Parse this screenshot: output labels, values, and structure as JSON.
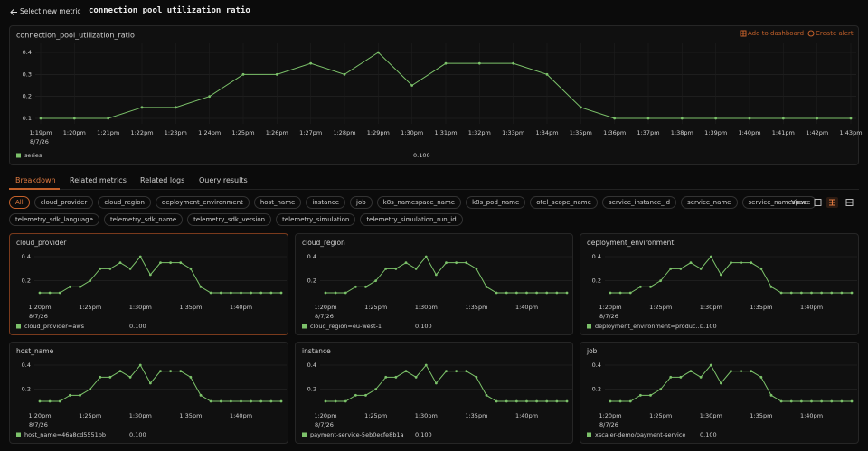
{
  "header": {
    "back": "Select new metric",
    "metric": "connection_pool_utilization_ratio"
  },
  "actions": [
    "Add to dashboard",
    "Create alert"
  ],
  "tabs": [
    "Breakdown",
    "Related metrics",
    "Related logs",
    "Query results"
  ],
  "filters": {
    "row1": [
      "All",
      "cloud_provider",
      "cloud_region",
      "deployment_environment",
      "host_name",
      "instance",
      "job",
      "k8s_namespace_name",
      "k8s_pod_name",
      "otel_scope_name",
      "service_instance_id",
      "service_name",
      "service_namespace"
    ],
    "row2": [
      "telemetry_sdk_language",
      "telemetry_sdk_name",
      "telemetry_sdk_version",
      "telemetry_simulation",
      "telemetry_simulation_run_id"
    ]
  },
  "view": "View",
  "chart_data": [
    {
      "type": "line",
      "title": "connection_pool_utilization_ratio",
      "date": "8/7/26",
      "categories": [
        "1:19pm",
        "1:20pm",
        "1:21pm",
        "1:22pm",
        "1:23pm",
        "1:24pm",
        "1:25pm",
        "1:26pm",
        "1:27pm",
        "1:28pm",
        "1:29pm",
        "1:30pm",
        "1:31pm",
        "1:32pm",
        "1:33pm",
        "1:34pm",
        "1:35pm",
        "1:36pm",
        "1:37pm",
        "1:38pm",
        "1:39pm",
        "1:40pm",
        "1:41pm",
        "1:42pm",
        "1:43pm"
      ],
      "series": [
        {
          "name": "series",
          "color": "#7cc26a",
          "values": [
            0.1,
            0.1,
            0.1,
            0.15,
            0.15,
            0.2,
            0.3,
            0.3,
            0.35,
            0.3,
            0.4,
            0.25,
            0.35,
            0.35,
            0.35,
            0.3,
            0.15,
            0.1,
            0.1,
            0.1,
            0.1,
            0.1,
            0.1,
            0.1,
            0.1
          ]
        }
      ],
      "legend_value": "0.100",
      "ylim": [
        0.1,
        0.4
      ],
      "yticks": [
        0.1,
        0.2,
        0.3,
        0.4
      ],
      "grid": true
    },
    {
      "type": "line",
      "title": "cloud_provider",
      "date": "8/7/26",
      "categories": [
        "1:20pm",
        null,
        null,
        null,
        null,
        "1:25pm",
        null,
        null,
        null,
        null,
        "1:30pm",
        null,
        null,
        null,
        null,
        "1:35pm",
        null,
        null,
        null,
        null,
        "1:40pm",
        null,
        null,
        null,
        null
      ],
      "series": [
        {
          "name": "cloud_provider=aws",
          "color": "#7cc26a",
          "values": [
            0.1,
            0.1,
            0.1,
            0.15,
            0.15,
            0.2,
            0.3,
            0.3,
            0.35,
            0.3,
            0.4,
            0.25,
            0.35,
            0.35,
            0.35,
            0.3,
            0.15,
            0.1,
            0.1,
            0.1,
            0.1,
            0.1,
            0.1,
            0.1,
            0.1
          ]
        }
      ],
      "legend_value": "0.100",
      "ylim": [
        0.1,
        0.4
      ],
      "yticks": [
        0.2,
        0.4
      ],
      "grid": true,
      "selected": true
    },
    {
      "type": "line",
      "title": "cloud_region",
      "date": "8/7/26",
      "categories": [
        "1:20pm",
        null,
        null,
        null,
        null,
        "1:25pm",
        null,
        null,
        null,
        null,
        "1:30pm",
        null,
        null,
        null,
        null,
        "1:35pm",
        null,
        null,
        null,
        null,
        "1:40pm",
        null,
        null,
        null,
        null
      ],
      "series": [
        {
          "name": "cloud_region=eu-west-1",
          "color": "#7cc26a",
          "values": [
            0.1,
            0.1,
            0.1,
            0.15,
            0.15,
            0.2,
            0.3,
            0.3,
            0.35,
            0.3,
            0.4,
            0.25,
            0.35,
            0.35,
            0.35,
            0.3,
            0.15,
            0.1,
            0.1,
            0.1,
            0.1,
            0.1,
            0.1,
            0.1,
            0.1
          ]
        }
      ],
      "legend_value": "0.100",
      "ylim": [
        0.1,
        0.4
      ],
      "yticks": [
        0.2,
        0.4
      ],
      "grid": true
    },
    {
      "type": "line",
      "title": "deployment_environment",
      "date": "8/7/26",
      "categories": [
        "1:20pm",
        null,
        null,
        null,
        null,
        "1:25pm",
        null,
        null,
        null,
        null,
        "1:30pm",
        null,
        null,
        null,
        null,
        "1:35pm",
        null,
        null,
        null,
        null,
        "1:40pm",
        null,
        null,
        null,
        null
      ],
      "series": [
        {
          "name": "deployment_environment=produc…",
          "color": "#7cc26a",
          "values": [
            0.1,
            0.1,
            0.1,
            0.15,
            0.15,
            0.2,
            0.3,
            0.3,
            0.35,
            0.3,
            0.4,
            0.25,
            0.35,
            0.35,
            0.35,
            0.3,
            0.15,
            0.1,
            0.1,
            0.1,
            0.1,
            0.1,
            0.1,
            0.1,
            0.1
          ]
        }
      ],
      "legend_value": "0.100",
      "ylim": [
        0.1,
        0.4
      ],
      "yticks": [
        0.2,
        0.4
      ],
      "grid": true
    },
    {
      "type": "line",
      "title": "host_name",
      "date": "8/7/26",
      "categories": [
        "1:20pm",
        null,
        null,
        null,
        null,
        "1:25pm",
        null,
        null,
        null,
        null,
        "1:30pm",
        null,
        null,
        null,
        null,
        "1:35pm",
        null,
        null,
        null,
        null,
        "1:40pm",
        null,
        null,
        null,
        null
      ],
      "series": [
        {
          "name": "host_name=46a8cd5551bb",
          "color": "#7cc26a",
          "values": [
            0.1,
            0.1,
            0.1,
            0.15,
            0.15,
            0.2,
            0.3,
            0.3,
            0.35,
            0.3,
            0.4,
            0.25,
            0.35,
            0.35,
            0.35,
            0.3,
            0.15,
            0.1,
            0.1,
            0.1,
            0.1,
            0.1,
            0.1,
            0.1,
            0.1
          ]
        }
      ],
      "legend_value": "0.100",
      "ylim": [
        0.1,
        0.4
      ],
      "yticks": [
        0.2,
        0.4
      ],
      "grid": true
    },
    {
      "type": "line",
      "title": "instance",
      "date": "8/7/26",
      "categories": [
        "1:20pm",
        null,
        null,
        null,
        null,
        "1:25pm",
        null,
        null,
        null,
        null,
        "1:30pm",
        null,
        null,
        null,
        null,
        "1:35pm",
        null,
        null,
        null,
        null,
        "1:40pm",
        null,
        null,
        null,
        null
      ],
      "series": [
        {
          "name": "payment-service-5eb0ecfe8b1a",
          "color": "#7cc26a",
          "values": [
            0.1,
            0.1,
            0.1,
            0.15,
            0.15,
            0.2,
            0.3,
            0.3,
            0.35,
            0.3,
            0.4,
            0.25,
            0.35,
            0.35,
            0.35,
            0.3,
            0.15,
            0.1,
            0.1,
            0.1,
            0.1,
            0.1,
            0.1,
            0.1,
            0.1
          ]
        }
      ],
      "legend_value": "0.100",
      "ylim": [
        0.1,
        0.4
      ],
      "yticks": [
        0.2,
        0.4
      ],
      "grid": true
    },
    {
      "type": "line",
      "title": "job",
      "date": "8/7/26",
      "categories": [
        "1:20pm",
        null,
        null,
        null,
        null,
        "1:25pm",
        null,
        null,
        null,
        null,
        "1:30pm",
        null,
        null,
        null,
        null,
        "1:35pm",
        null,
        null,
        null,
        null,
        "1:40pm",
        null,
        null,
        null,
        null
      ],
      "series": [
        {
          "name": "xscaler-demo/payment-service",
          "color": "#7cc26a",
          "values": [
            0.1,
            0.1,
            0.1,
            0.15,
            0.15,
            0.2,
            0.3,
            0.3,
            0.35,
            0.3,
            0.4,
            0.25,
            0.35,
            0.35,
            0.35,
            0.3,
            0.15,
            0.1,
            0.1,
            0.1,
            0.1,
            0.1,
            0.1,
            0.1,
            0.1
          ]
        }
      ],
      "legend_value": "0.100",
      "ylim": [
        0.1,
        0.4
      ],
      "yticks": [
        0.2,
        0.4
      ],
      "grid": true
    }
  ]
}
